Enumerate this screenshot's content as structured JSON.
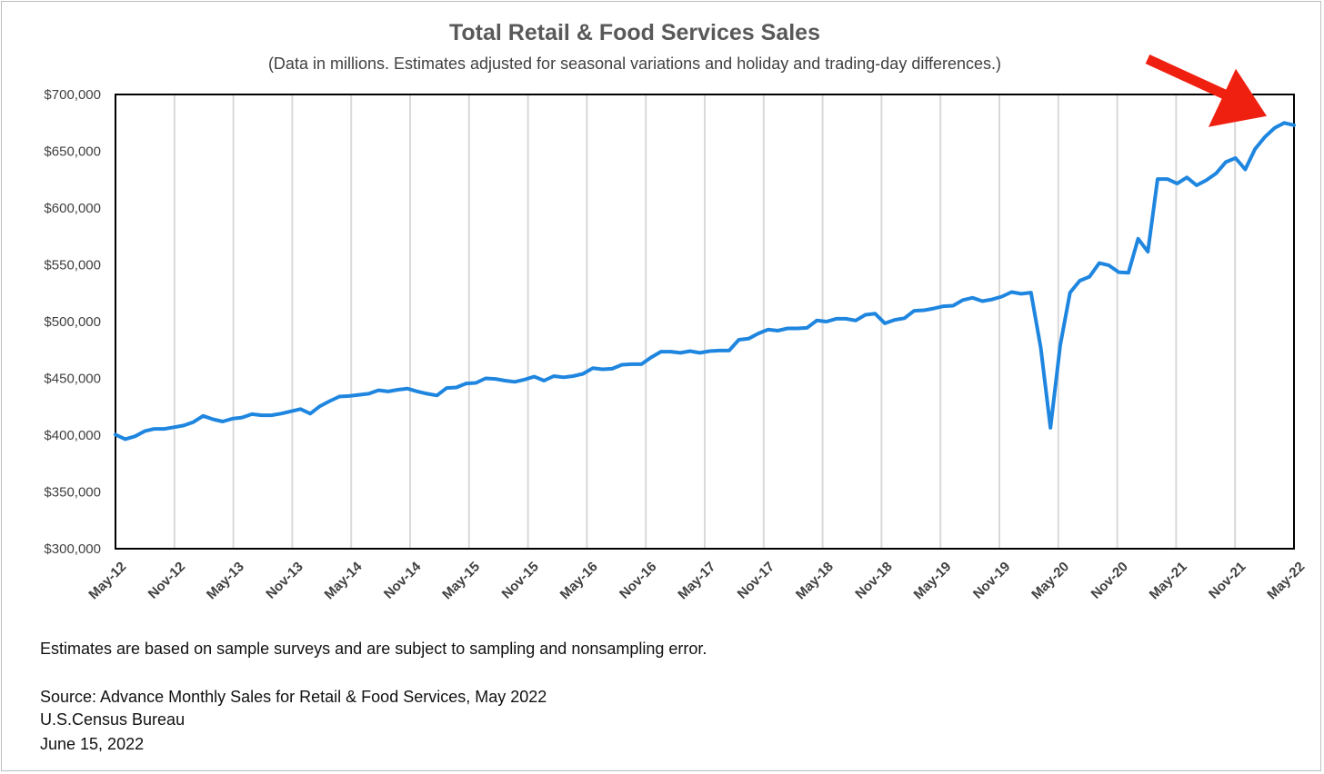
{
  "chart_data": {
    "type": "line",
    "title": "Total Retail & Food Services Sales",
    "subtitle": "(Data in millions. Estimates adjusted for seasonal variations and holiday and trading-day differences.)",
    "xlabel": "",
    "ylabel": "",
    "ylim": [
      300000,
      700000
    ],
    "yticks": [
      "$300,000",
      "$350,000",
      "$400,000",
      "$450,000",
      "$500,000",
      "$550,000",
      "$600,000",
      "$650,000",
      "$700,000"
    ],
    "xticks": [
      "May-12",
      "Nov-12",
      "May-13",
      "Nov-13",
      "May-14",
      "Nov-14",
      "May-15",
      "Nov-15",
      "May-16",
      "Nov-16",
      "May-17",
      "Nov-17",
      "May-18",
      "Nov-18",
      "May-19",
      "Nov-19",
      "May-20",
      "Nov-20",
      "May-21",
      "Nov-21",
      "May-22"
    ],
    "grid": "vertical",
    "legend": "none",
    "line_color": "#1f86e0",
    "annotation": "red arrow pointing at latest value",
    "annotation_color": "#f02010",
    "x_start": "May-12",
    "x_end": "May-22",
    "series": [
      {
        "values": [
          400500,
          396500,
          399000,
          403500,
          405500,
          405500,
          407000,
          408500,
          411500,
          417000,
          414000,
          412000,
          414500,
          415500,
          418500,
          417500,
          417500,
          419000,
          421000,
          423000,
          419000,
          425500,
          430000,
          434000,
          434500,
          435500,
          436500,
          439500,
          438500,
          440000,
          441000,
          438500,
          436500,
          435000,
          441500,
          442000,
          445500,
          446000,
          450000,
          449500,
          448000,
          447000,
          449000,
          451500,
          448000,
          452000,
          451000,
          452000,
          454000,
          459000,
          458000,
          458500,
          462000,
          462500,
          462500,
          468500,
          473500,
          473500,
          472500,
          474000,
          472500,
          474000,
          474500,
          474500,
          484000,
          485000,
          489500,
          493000,
          492000,
          494000,
          494000,
          494500,
          501000,
          500000,
          502500,
          502500,
          501000,
          506000,
          507000,
          498500,
          501500,
          503000,
          509500,
          510000,
          511500,
          513500,
          514000,
          519000,
          521000,
          518000,
          519500,
          522000,
          526000,
          524500,
          525500,
          477000,
          406500,
          479000,
          525500,
          536000,
          539500,
          551500,
          549500,
          543500,
          543000,
          573000,
          561500,
          625500,
          625500,
          621500,
          627000,
          620000,
          624500,
          630500,
          640500,
          644000,
          634000,
          652000,
          662500,
          670500,
          675000,
          673000
        ]
      }
    ]
  },
  "footer": {
    "note": "Estimates are based on sample surveys and are subject to sampling and nonsampling error.",
    "source_line1": "Source: Advance Monthly Sales for Retail & Food Services, May 2022",
    "source_line2": "U.S.Census Bureau",
    "source_line3": "June 15, 2022"
  }
}
